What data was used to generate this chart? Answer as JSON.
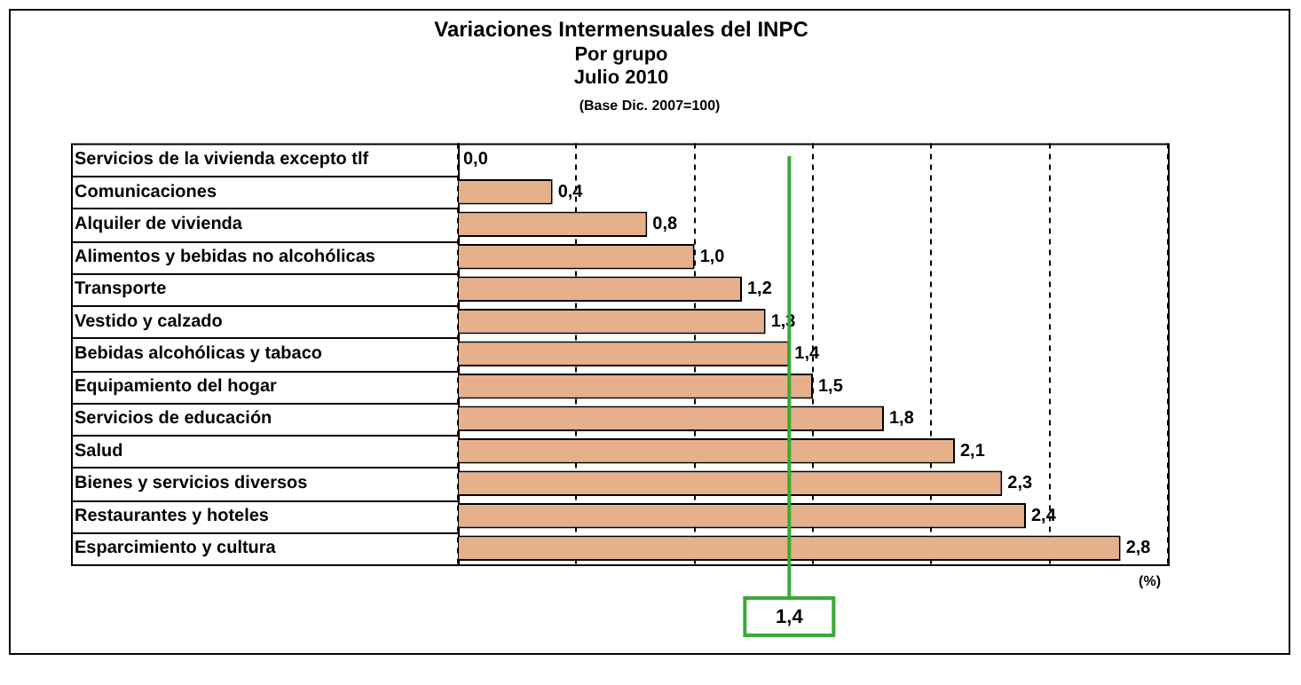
{
  "chart_data": {
    "type": "bar",
    "orientation": "horizontal",
    "title": "Variaciones Intermensuales del INPC",
    "subtitle": "Por grupo\nJulio 2010",
    "annotations": [
      "(Base Dic. 2007=100)",
      "(%)"
    ],
    "categories": [
      "Servicios de la vivienda excepto tlf",
      "Comunicaciones",
      "Alquiler de vivienda",
      "Alimentos y bebidas no alcohólicas",
      "Transporte",
      "Vestido y calzado",
      "Bebidas alcohólicas y tabaco",
      "Equipamiento del hogar",
      "Servicios de educación",
      "Salud",
      "Bienes y servicios diversos",
      "Restaurantes y hoteles",
      "Esparcimiento y cultura"
    ],
    "values": [
      0.0,
      0.4,
      0.8,
      1.0,
      1.2,
      1.3,
      1.4,
      1.5,
      1.8,
      2.1,
      2.3,
      2.4,
      2.8
    ],
    "value_labels": [
      "0,0",
      "0,4",
      "0,8",
      "1,0",
      "1,2",
      "1,3",
      "1,4",
      "1,5",
      "1,8",
      "2,1",
      "2,3",
      "2,4",
      "2,8"
    ],
    "color": "#e6b08a",
    "xlim": [
      0,
      3
    ],
    "xticks": [
      {
        "value": 0,
        "label": null
      },
      {
        "value": 0.5,
        "label": null
      },
      {
        "value": 1,
        "label": null
      },
      {
        "value": 1.5,
        "label": null
      },
      {
        "value": 2,
        "label": null
      },
      {
        "value": 2.5,
        "label": null
      },
      {
        "value": 3,
        "label": null
      }
    ],
    "grid": "x",
    "tick_labels": "y",
    "legend": false,
    "ref_lines": [
      {
        "axis": "x",
        "value": 1.4,
        "label": "1,4",
        "color": "#3aaa35"
      }
    ]
  }
}
